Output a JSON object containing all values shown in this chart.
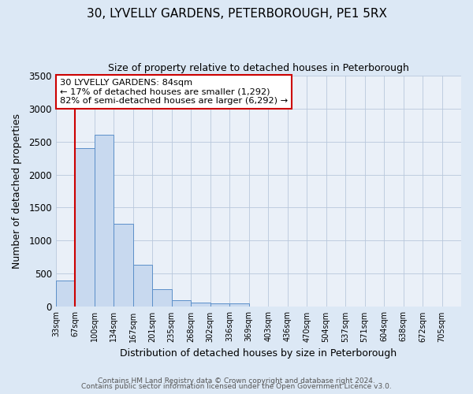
{
  "title": "30, LYVELLY GARDENS, PETERBOROUGH, PE1 5RX",
  "subtitle": "Size of property relative to detached houses in Peterborough",
  "xlabel": "Distribution of detached houses by size in Peterborough",
  "ylabel": "Number of detached properties",
  "bar_values": [
    400,
    2400,
    2600,
    1250,
    640,
    270,
    100,
    60,
    55,
    50,
    0,
    0,
    0,
    0,
    0,
    0,
    0,
    0,
    0,
    0,
    0
  ],
  "bar_labels": [
    "33sqm",
    "67sqm",
    "100sqm",
    "134sqm",
    "167sqm",
    "201sqm",
    "235sqm",
    "268sqm",
    "302sqm",
    "336sqm",
    "369sqm",
    "403sqm",
    "436sqm",
    "470sqm",
    "504sqm",
    "537sqm",
    "571sqm",
    "604sqm",
    "638sqm",
    "672sqm",
    "705sqm"
  ],
  "ylim": [
    0,
    3500
  ],
  "yticks": [
    0,
    500,
    1000,
    1500,
    2000,
    2500,
    3000,
    3500
  ],
  "bar_color": "#c8d9ef",
  "bar_edge_color": "#5b8fc9",
  "vline_x_index": 1,
  "vline_color": "#cc0000",
  "annotation_title": "30 LYVELLY GARDENS: 84sqm",
  "annotation_line1": "← 17% of detached houses are smaller (1,292)",
  "annotation_line2": "82% of semi-detached houses are larger (6,292) →",
  "annotation_box_edge": "#cc0000",
  "footer_line1": "Contains HM Land Registry data © Crown copyright and database right 2024.",
  "footer_line2": "Contains public sector information licensed under the Open Government Licence v3.0.",
  "bg_color": "#dce8f5",
  "plot_bg_color": "#eaf0f8",
  "fig_bg_color": "#dce8f5"
}
